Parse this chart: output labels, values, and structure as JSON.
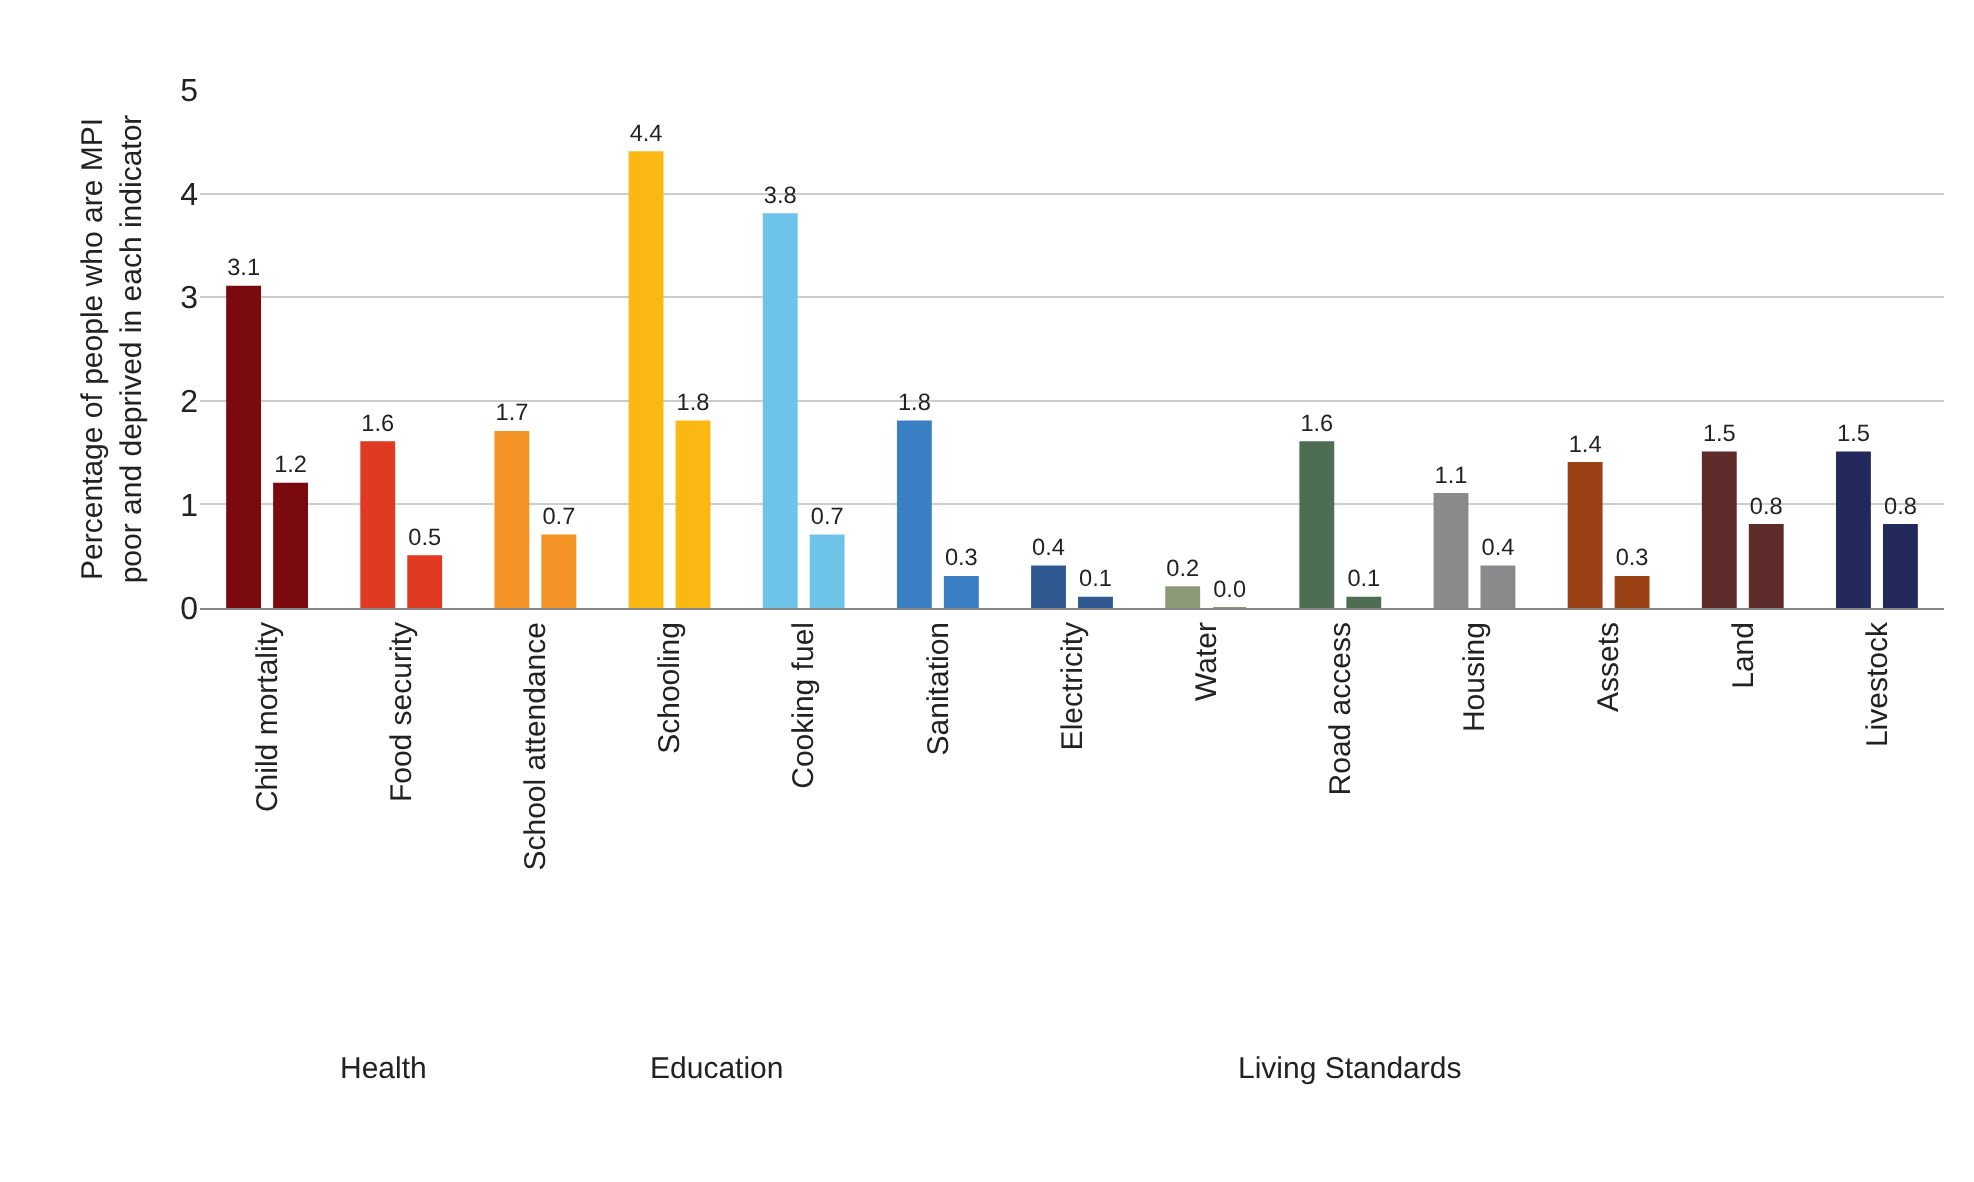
{
  "chart_data": {
    "type": "bar",
    "ylabel": "Percentage of people who are MPI\npoor and deprived in each indicator",
    "categories": [
      "Child mortality",
      "Food security",
      "School attendance",
      "Schooling",
      "Cooking fuel",
      "Sanitation",
      "Electricity",
      "Water",
      "Road access",
      "Housing",
      "Assets",
      "Land",
      "Livestock"
    ],
    "series": [
      {
        "colors": [
          "#7b0a0e",
          "#e03a22",
          "#f39325",
          "#fbb813",
          "#6ec3e8",
          "#3a7fc3",
          "#2f5890",
          "#8c9a75",
          "#4e6e52",
          "#8a8a8c",
          "#9a4216",
          "#5e2b2b",
          "#23295a"
        ],
        "values": [
          3.1,
          1.6,
          1.7,
          4.4,
          3.8,
          1.8,
          0.4,
          0.2,
          1.6,
          1.1,
          1.4,
          1.5,
          1.5
        ],
        "value_labels": [
          "3.1",
          "1.6",
          "1.7",
          "4.4",
          "3.8",
          "1.8",
          "0.4",
          "0.2",
          "1.6",
          "1.1",
          "1.4",
          "1.5",
          "1.5"
        ]
      },
      {
        "colors": [
          "#7b0a0e",
          "#e03a22",
          "#f39325",
          "#fbb813",
          "#6ec3e8",
          "#3a7fc3",
          "#2f5890",
          "#8c9a75",
          "#4e6e52",
          "#8a8a8c",
          "#9a4216",
          "#5e2b2b",
          "#23295a"
        ],
        "values": [
          1.2,
          0.5,
          0.7,
          1.8,
          0.7,
          0.3,
          0.1,
          0.0,
          0.1,
          0.4,
          0.3,
          0.8,
          0.8
        ],
        "value_labels": [
          "1.2",
          "0.5",
          "0.7",
          "1.8",
          "0.7",
          "0.3",
          "0.1",
          "0.0",
          "0.1",
          "0.4",
          "0.3",
          "0.8",
          "0.8"
        ]
      }
    ],
    "ylim": [
      0,
      5
    ],
    "yticks": [
      0,
      1,
      2,
      3,
      4,
      5
    ],
    "grid": "y",
    "annotations": [
      "Health",
      "Education",
      "Living Standards"
    ]
  }
}
